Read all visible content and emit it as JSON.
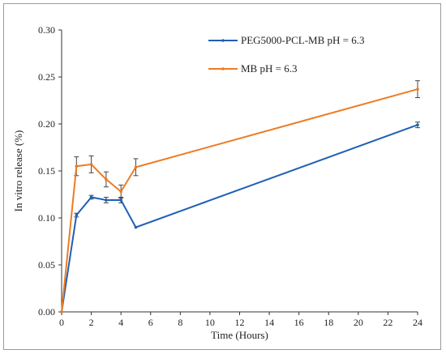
{
  "chart_data": {
    "type": "line",
    "title": "",
    "xlabel": "Time (Hours)",
    "ylabel": "In vitro release (%)",
    "xlim": [
      0,
      24
    ],
    "ylim": [
      0,
      0.3
    ],
    "x_ticks": [
      0,
      2,
      4,
      6,
      8,
      10,
      12,
      14,
      16,
      18,
      20,
      22,
      24
    ],
    "y_ticks": [
      "0.00",
      "0.05",
      "0.10",
      "0.15",
      "0.20",
      "0.25",
      "0.30"
    ],
    "grid": false,
    "legend_position": "top-right",
    "series": [
      {
        "name": "PEG5000-PCL-MB pH = 6.3",
        "color": "#1f5fb4",
        "x": [
          0,
          1,
          2,
          3,
          4,
          5,
          24
        ],
        "y": [
          0.0,
          0.103,
          0.122,
          0.119,
          0.119,
          0.09,
          0.199
        ],
        "err": [
          0.0,
          0.002,
          0.002,
          0.003,
          0.003,
          0.0,
          0.003
        ]
      },
      {
        "name": "MB pH = 6.3",
        "color": "#ee7b22",
        "x": [
          0,
          1,
          2,
          3,
          4,
          5,
          24
        ],
        "y": [
          0.0,
          0.155,
          0.157,
          0.141,
          0.128,
          0.154,
          0.237
        ],
        "err": [
          0.0,
          0.01,
          0.009,
          0.008,
          0.007,
          0.009,
          0.009
        ]
      }
    ]
  }
}
